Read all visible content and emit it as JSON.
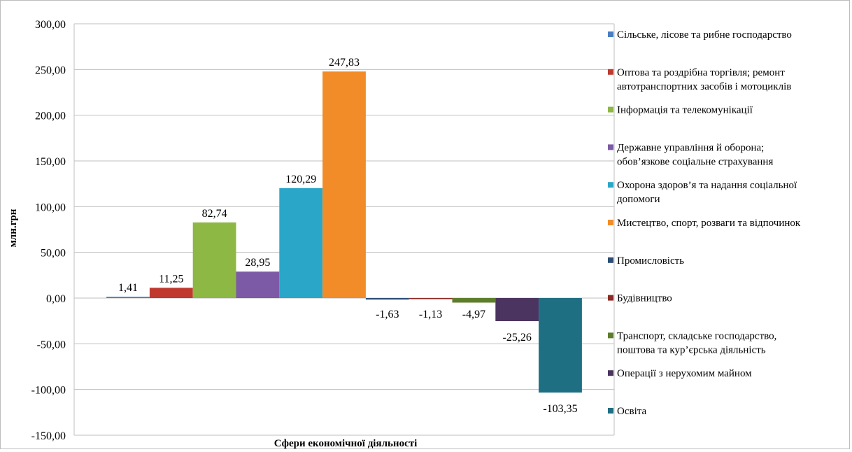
{
  "chart_data": {
    "type": "bar",
    "title": "",
    "xlabel": "Сфери економічної діяльності",
    "ylabel": "млн.грн",
    "ylim": [
      -150,
      300
    ],
    "yticks": [
      "300,00",
      "250,00",
      "200,00",
      "150,00",
      "100,00",
      "50,00",
      "0,00",
      "-50,00",
      "-100,00",
      "-150,00"
    ],
    "ytick_values": [
      300,
      250,
      200,
      150,
      100,
      50,
      0,
      -50,
      -100,
      -150
    ],
    "grid": true,
    "legend_position": "right",
    "series": [
      {
        "name": "Сільське, лісове та рибне господарство",
        "legend": [
          "Сільське, лісове та рибне господарство"
        ],
        "value": 1.41,
        "label": "1,41",
        "color": "#4a7ec4"
      },
      {
        "name": "Оптова та роздрібна торгівля; ремонт автотранспортних засобів і мотоциклів",
        "legend": [
          "Оптова та роздрібна торгівля; ремонт",
          "автотранспортних засобів і мотоциклів"
        ],
        "value": 11.25,
        "label": "11,25",
        "color": "#c0392f"
      },
      {
        "name": "Інформація та телекомунікації",
        "legend": [
          "Інформація та телекомунікації"
        ],
        "value": 82.74,
        "label": "82,74",
        "color": "#8cb843"
      },
      {
        "name": "Державне управління й оборона; обов’язкове соціальне страхування",
        "legend": [
          "Державне управління й оборона;",
          "обов’язкове соціальне страхування"
        ],
        "value": 28.95,
        "label": "28,95",
        "color": "#7d5aa6"
      },
      {
        "name": "Охорона здоров’я та надання соціальної допомоги",
        "legend": [
          "Охорона здоров’я та надання соціальної",
          "допомоги"
        ],
        "value": 120.29,
        "label": "120,29",
        "color": "#2aa7c8"
      },
      {
        "name": "Мистецтво, спорт, розваги та відпочинок",
        "legend": [
          "Мистецтво, спорт, розваги та відпочинок"
        ],
        "value": 247.83,
        "label": "247,83",
        "color": "#f28c28"
      },
      {
        "name": "Промисловість",
        "legend": [
          "Промисловість"
        ],
        "value": -1.63,
        "label": "-1,63",
        "color": "#2c4d75"
      },
      {
        "name": "Будівництво",
        "legend": [
          "Будівництво"
        ],
        "value": -1.13,
        "label": "-1,13",
        "color": "#8c2a24"
      },
      {
        "name": "Транспорт, складське господарство, поштова та кур’єрська діяльність",
        "legend": [
          "Транспорт, складське господарство,",
          "поштова та кур’єрська діяльність"
        ],
        "value": -4.97,
        "label": "-4,97",
        "color": "#5e7d2c"
      },
      {
        "name": "Операції з нерухомим майном",
        "legend": [
          "Операції з нерухомим майном"
        ],
        "value": -25.26,
        "label": "-25,26",
        "color": "#4b345f"
      },
      {
        "name": "Освіта",
        "legend": [
          "Освіта"
        ],
        "value": -103.35,
        "label": "-103,35",
        "color": "#1f6f82"
      }
    ]
  }
}
